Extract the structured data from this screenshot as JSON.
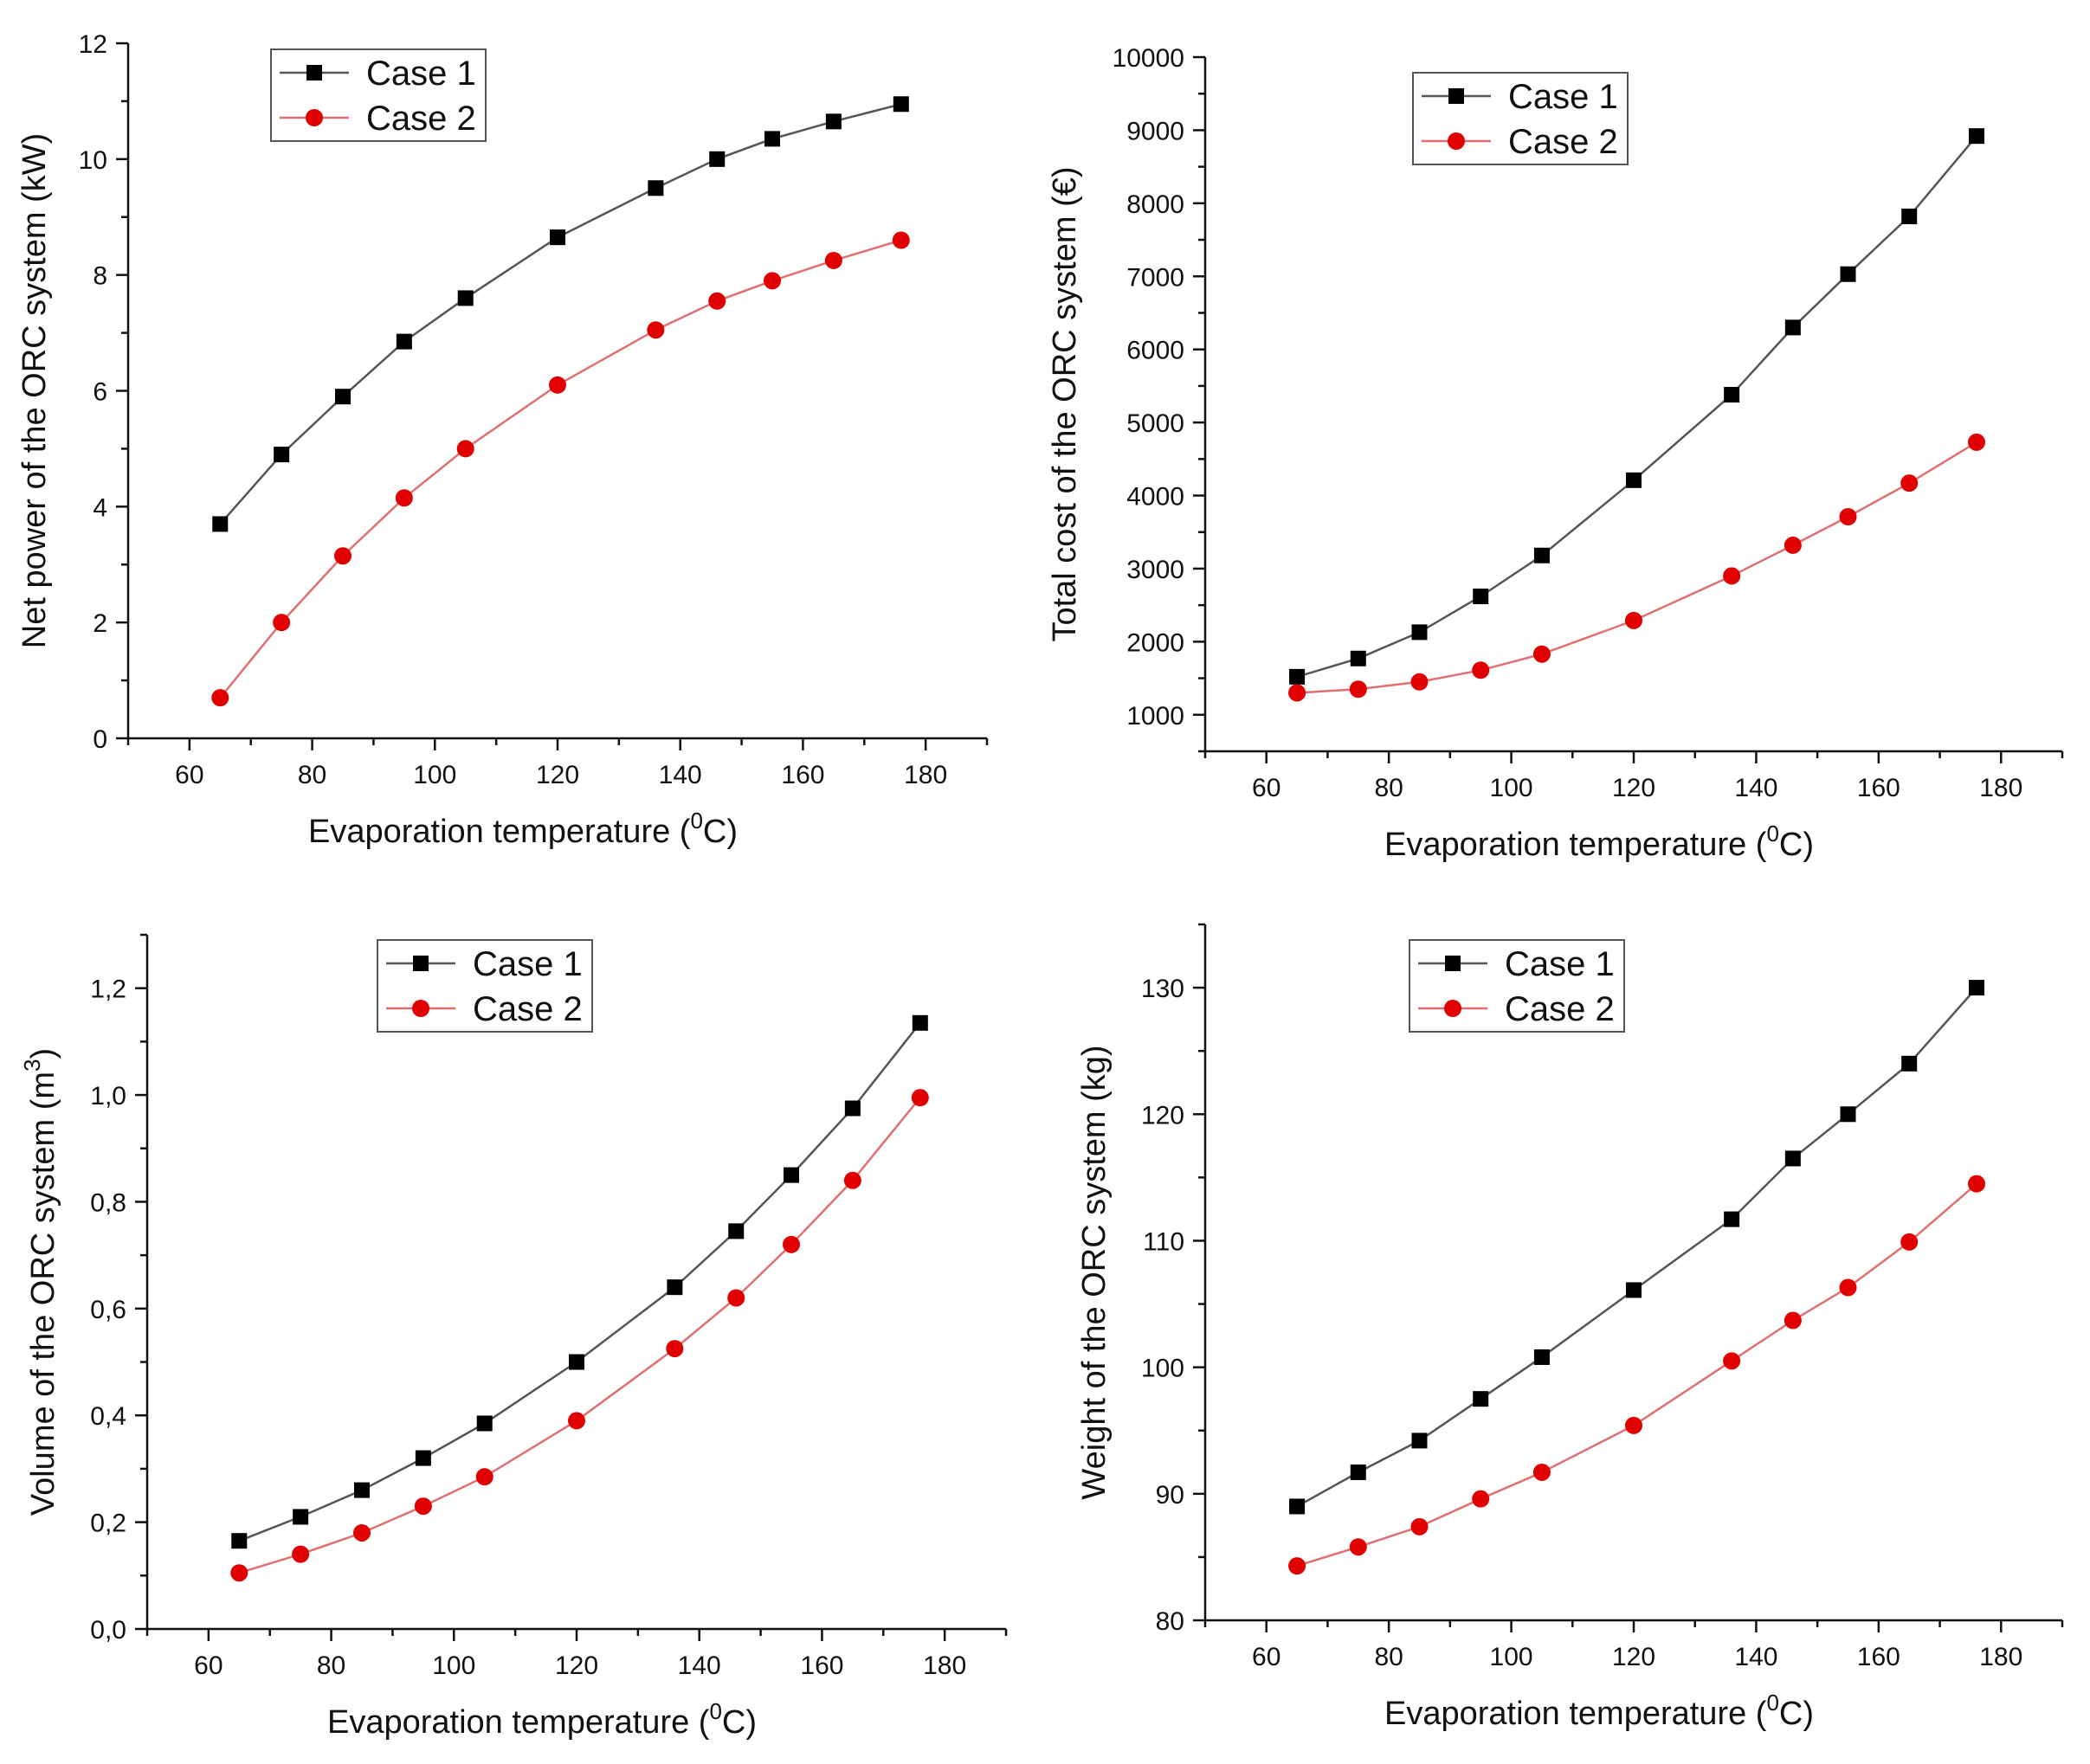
{
  "chart_data": [
    {
      "type": "line",
      "xlabel": "Evaporation  temperature (",
      "xlabel_sup": "0",
      "xlabel_tail": "C)",
      "ylabel": "Net power of the ORC system (kW)",
      "xlim": [
        50,
        190
      ],
      "ylim": [
        0,
        12
      ],
      "x_ticks": [
        60,
        80,
        100,
        120,
        140,
        160,
        180
      ],
      "y_ticks": [
        0,
        2,
        4,
        6,
        8,
        10,
        12
      ],
      "x_tick_labels": [
        "60",
        "80",
        "100",
        "120",
        "140",
        "160",
        "180"
      ],
      "y_tick_labels": [
        "0",
        "2",
        "4",
        "6",
        "8",
        "10",
        "12"
      ],
      "legend_position": "top-left",
      "x": [
        65,
        75,
        85,
        95,
        105,
        120,
        136,
        146,
        155,
        165,
        176
      ],
      "series": [
        {
          "name": "Case 1",
          "marker": "square",
          "color": "#000000",
          "line_color": "#555555",
          "values": [
            3.7,
            4.9,
            5.9,
            6.85,
            7.6,
            8.65,
            9.5,
            10.0,
            10.35,
            10.65,
            10.95
          ]
        },
        {
          "name": "Case 2",
          "marker": "circle",
          "color": "#e00000",
          "line_color": "#e07070",
          "values": [
            0.7,
            2.0,
            3.15,
            4.15,
            5.0,
            6.1,
            7.05,
            7.55,
            7.9,
            8.25,
            8.6
          ]
        }
      ]
    },
    {
      "type": "line",
      "xlabel": "Evaporation  temperature (",
      "xlabel_sup": "0",
      "xlabel_tail": "C)",
      "ylabel": "Total cost of the ORC system (€)",
      "xlim": [
        50,
        190
      ],
      "ylim": [
        500,
        10000
      ],
      "x_ticks": [
        60,
        80,
        100,
        120,
        140,
        160,
        180
      ],
      "y_ticks": [
        1000,
        2000,
        3000,
        4000,
        5000,
        6000,
        7000,
        8000,
        9000,
        10000
      ],
      "x_tick_labels": [
        "60",
        "80",
        "100",
        "120",
        "140",
        "160",
        "180"
      ],
      "y_tick_labels": [
        "1000",
        "2000",
        "3000",
        "4000",
        "5000",
        "6000",
        "7000",
        "8000",
        "9000",
        "10000"
      ],
      "legend_position": "top-left",
      "x": [
        65,
        75,
        85,
        95,
        105,
        120,
        136,
        146,
        155,
        165,
        176
      ],
      "series": [
        {
          "name": "Case 1",
          "marker": "square",
          "color": "#000000",
          "line_color": "#555555",
          "values": [
            1520,
            1770,
            2130,
            2620,
            3180,
            4210,
            5380,
            6300,
            7030,
            7820,
            8920
          ]
        },
        {
          "name": "Case 2",
          "marker": "circle",
          "color": "#e00000",
          "line_color": "#e07070",
          "values": [
            1300,
            1350,
            1450,
            1610,
            1830,
            2290,
            2900,
            3320,
            3710,
            4170,
            4730
          ]
        }
      ]
    },
    {
      "type": "line",
      "xlabel": "Evaporation  temperature (",
      "xlabel_sup": "0",
      "xlabel_tail": "C)",
      "ylabel": "Volume of the ORC system (m",
      "ylabel_sup": "3",
      "ylabel_tail": ")",
      "xlim": [
        50,
        190
      ],
      "ylim": [
        0,
        1.3
      ],
      "x_ticks": [
        60,
        80,
        100,
        120,
        140,
        160,
        180
      ],
      "y_ticks": [
        0,
        0.2,
        0.4,
        0.6,
        0.8,
        1.0,
        1.2
      ],
      "x_tick_labels": [
        "60",
        "80",
        "100",
        "120",
        "140",
        "160",
        "180"
      ],
      "y_tick_labels": [
        "0,0",
        "0,2",
        "0,4",
        "0,6",
        "0,8",
        "1,0",
        "1,2"
      ],
      "legend_position": "top-center",
      "x": [
        65,
        75,
        85,
        95,
        105,
        120,
        136,
        146,
        155,
        165,
        176
      ],
      "series": [
        {
          "name": "Case 1",
          "marker": "square",
          "color": "#000000",
          "line_color": "#555555",
          "values": [
            0.165,
            0.21,
            0.26,
            0.32,
            0.385,
            0.5,
            0.64,
            0.745,
            0.85,
            0.975,
            1.135
          ]
        },
        {
          "name": "Case 2",
          "marker": "circle",
          "color": "#e00000",
          "line_color": "#e07070",
          "values": [
            0.105,
            0.14,
            0.18,
            0.23,
            0.285,
            0.39,
            0.525,
            0.62,
            0.72,
            0.84,
            0.995
          ]
        }
      ]
    },
    {
      "type": "line",
      "xlabel": "Evaporation  temperature (",
      "xlabel_sup": "0",
      "xlabel_tail": "C)",
      "ylabel": "Weight of the ORC system (kg)",
      "xlim": [
        50,
        190
      ],
      "ylim": [
        80,
        135
      ],
      "x_ticks": [
        60,
        80,
        100,
        120,
        140,
        160,
        180
      ],
      "y_ticks": [
        80,
        90,
        100,
        110,
        120,
        130
      ],
      "x_tick_labels": [
        "60",
        "80",
        "100",
        "120",
        "140",
        "160",
        "180"
      ],
      "y_tick_labels": [
        "80",
        "90",
        "100",
        "110",
        "120",
        "130"
      ],
      "legend_position": "top-left",
      "x": [
        65,
        75,
        85,
        95,
        105,
        120,
        136,
        146,
        155,
        165,
        176
      ],
      "series": [
        {
          "name": "Case 1",
          "marker": "square",
          "color": "#000000",
          "line_color": "#555555",
          "values": [
            89.0,
            91.7,
            94.2,
            97.5,
            100.8,
            106.1,
            111.7,
            116.5,
            120.0,
            124.0,
            130.0
          ]
        },
        {
          "name": "Case 2",
          "marker": "circle",
          "color": "#e00000",
          "line_color": "#e07070",
          "values": [
            84.3,
            85.8,
            87.4,
            89.6,
            91.7,
            95.4,
            100.5,
            103.7,
            106.3,
            109.9,
            114.5
          ]
        }
      ]
    }
  ]
}
